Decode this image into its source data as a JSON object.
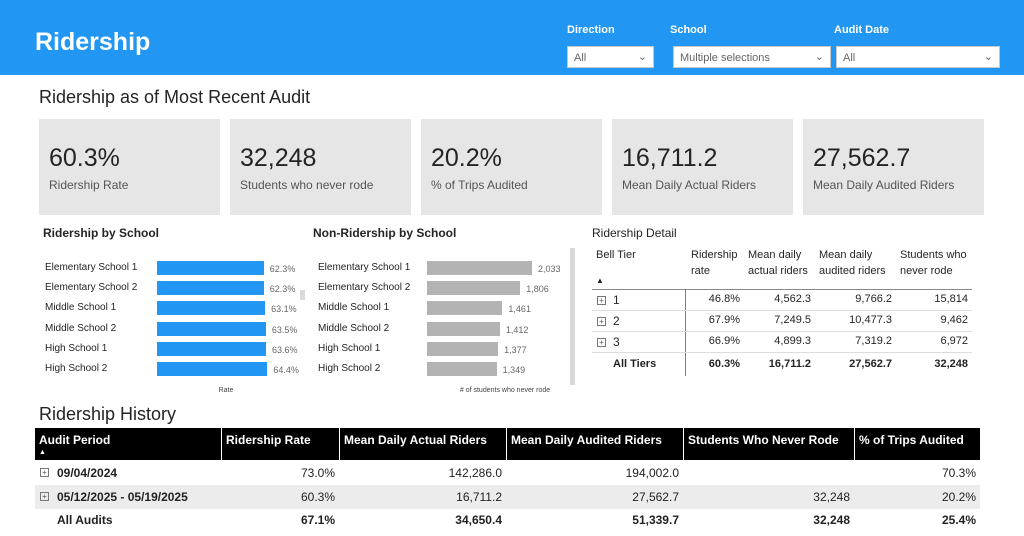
{
  "header": {
    "title": "Ridership"
  },
  "filters": {
    "direction": {
      "label": "Direction",
      "value": "All"
    },
    "school": {
      "label": "School",
      "value": "Multiple selections"
    },
    "audit_date": {
      "label": "Audit Date",
      "value": "All"
    }
  },
  "recent": {
    "title": "Ridership as of Most Recent Audit",
    "cards": [
      {
        "value": "60.3%",
        "label": "Ridership Rate"
      },
      {
        "value": "32,248",
        "label": "Students who never rode"
      },
      {
        "value": "20.2%",
        "label": "% of Trips Audited"
      },
      {
        "value": "16,711.2",
        "label": "Mean Daily Actual Riders"
      },
      {
        "value": "27,562.7",
        "label": "Mean Daily Audited Riders"
      }
    ]
  },
  "chart_data": [
    {
      "type": "bar",
      "orientation": "horizontal",
      "title": "Ridership by School",
      "categories": [
        "Elementary School 1",
        "Elementary School 2",
        "Middle School 1",
        "Middle School 2",
        "High School 1",
        "High School 2"
      ],
      "values": [
        62.3,
        62.3,
        63.1,
        63.5,
        63.6,
        64.4
      ],
      "value_labels": [
        "62.3%",
        "62.3%",
        "63.1%",
        "63.5%",
        "63.6%",
        "64.4%"
      ],
      "xlabel": "Rate",
      "xlim": [
        0,
        70
      ],
      "color": "#2196f3"
    },
    {
      "type": "bar",
      "orientation": "horizontal",
      "title": "Non-Ridership by School",
      "categories": [
        "Elementary School 1",
        "Elementary School 2",
        "Middle School 1",
        "Middle School 2",
        "High School 1",
        "High School 2"
      ],
      "values": [
        2033,
        1806,
        1461,
        1412,
        1377,
        1349
      ],
      "value_labels": [
        "2,033",
        "1,806",
        "1,461",
        "1,412",
        "1,377",
        "1,349"
      ],
      "xlabel": "# of students who never rode",
      "xlim": [
        0,
        2150
      ],
      "color": "#b3b3b3"
    }
  ],
  "detail": {
    "title": "Ridership Detail",
    "columns": [
      "Bell Tier",
      "Ridership rate",
      "Mean daily actual riders",
      "Mean daily audited riders",
      "Students who never rode"
    ],
    "rows": [
      {
        "tier": "1",
        "rate": "46.8%",
        "actual": "4,562.3",
        "audited": "9,766.2",
        "never": "15,814"
      },
      {
        "tier": "2",
        "rate": "67.9%",
        "actual": "7,249.5",
        "audited": "10,477.3",
        "never": "9,462"
      },
      {
        "tier": "3",
        "rate": "66.9%",
        "actual": "4,899.3",
        "audited": "7,319.2",
        "never": "6,972"
      }
    ],
    "total": {
      "tier": "All Tiers",
      "rate": "60.3%",
      "actual": "16,711.2",
      "audited": "27,562.7",
      "never": "32,248"
    }
  },
  "history": {
    "title": "Ridership History",
    "columns": [
      "Audit Period",
      "Ridership Rate",
      "Mean Daily Actual Riders",
      "Mean Daily Audited Riders",
      "Students Who Never Rode",
      "% of Trips Audited"
    ],
    "rows": [
      {
        "period": "09/04/2024",
        "rate": "73.0%",
        "actual": "142,286.0",
        "audited": "194,002.0",
        "never": "",
        "trips": "70.3%"
      },
      {
        "period": "05/12/2025 - 05/19/2025",
        "rate": "60.3%",
        "actual": "16,711.2",
        "audited": "27,562.7",
        "never": "32,248",
        "trips": "20.2%"
      }
    ],
    "total": {
      "period": "All Audits",
      "rate": "67.1%",
      "actual": "34,650.4",
      "audited": "51,339.7",
      "never": "32,248",
      "trips": "25.4%"
    }
  }
}
